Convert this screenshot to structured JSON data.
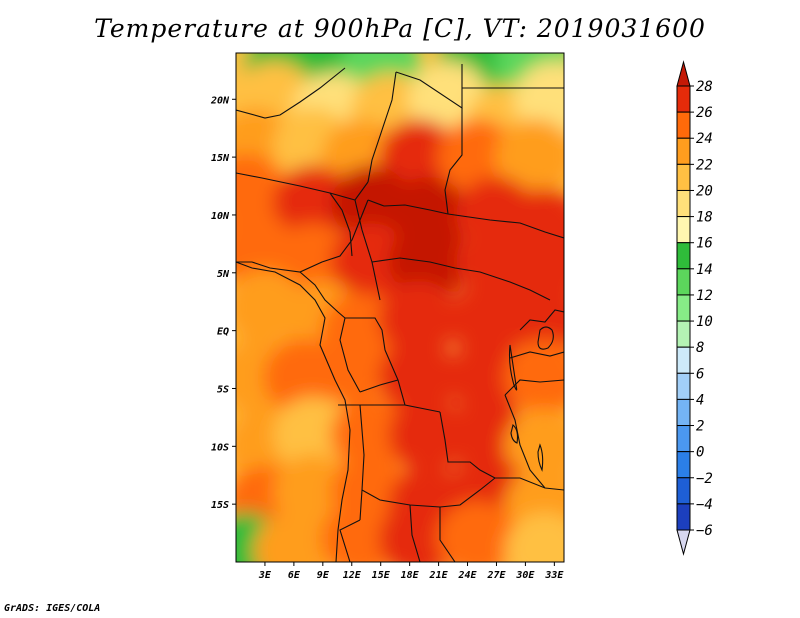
{
  "title": "Temperature at 900hPa [C], VT: 2019031600",
  "credit": "GrADS: IGES/COLA",
  "map": {
    "lon_range": [
      0,
      34
    ],
    "lat_range": [
      -20,
      24
    ],
    "lat_ticks": [
      {
        "lat": 20,
        "label": "20N"
      },
      {
        "lat": 15,
        "label": "15N"
      },
      {
        "lat": 10,
        "label": "10N"
      },
      {
        "lat": 5,
        "label": "5N"
      },
      {
        "lat": 0,
        "label": "EQ"
      },
      {
        "lat": -5,
        "label": "5S"
      },
      {
        "lat": -10,
        "label": "10S"
      },
      {
        "lat": -15,
        "label": "15S"
      }
    ],
    "lon_ticks": [
      {
        "lon": 3,
        "label": "3E"
      },
      {
        "lon": 6,
        "label": "6E"
      },
      {
        "lon": 9,
        "label": "9E"
      },
      {
        "lon": 12,
        "label": "12E"
      },
      {
        "lon": 15,
        "label": "15E"
      },
      {
        "lon": 18,
        "label": "18E"
      },
      {
        "lon": 21,
        "label": "21E"
      },
      {
        "lon": 24,
        "label": "24E"
      },
      {
        "lon": 27,
        "label": "27E"
      },
      {
        "lon": 30,
        "label": "30E"
      },
      {
        "lon": 33,
        "label": "33E"
      }
    ]
  },
  "colorbar": {
    "levels": [
      -6,
      -4,
      -2,
      0,
      2,
      4,
      6,
      8,
      10,
      12,
      14,
      16,
      18,
      20,
      22,
      24,
      26,
      28
    ],
    "labels": [
      "28",
      "26",
      "24",
      "22",
      "20",
      "18",
      "16",
      "14",
      "12",
      "10",
      "8",
      "6",
      "4",
      "2",
      "0",
      "−2",
      "−4",
      "−6"
    ],
    "colors": [
      "#1a0a7a",
      "#1c3fbe",
      "#1e5fd6",
      "#2b7fe8",
      "#4b98f0",
      "#74b4f5",
      "#a2cff8",
      "#cdeafa",
      "#b4f3b4",
      "#87ec87",
      "#5cd65c",
      "#2fbc3a",
      "#fff7b0",
      "#ffe07a",
      "#ffc043",
      "#ff9d1e",
      "#ff6a0a",
      "#e52b0a",
      "#c41906"
    ]
  },
  "chart_data": {
    "type": "heatmap",
    "title": "Temperature at 900hPa [C], VT: 2019031600",
    "x_ticks": [
      "3E",
      "6E",
      "9E",
      "12E",
      "15E",
      "18E",
      "21E",
      "24E",
      "27E",
      "30E",
      "33E"
    ],
    "y_ticks": [
      "20N",
      "15N",
      "10N",
      "5N",
      "EQ",
      "5S",
      "10S",
      "15S"
    ],
    "xlim": [
      0,
      34
    ],
    "ylim": [
      -20,
      24
    ],
    "contour_levels": [
      -6,
      -4,
      -2,
      0,
      2,
      4,
      6,
      8,
      10,
      12,
      14,
      16,
      18,
      20,
      22,
      24,
      26,
      28
    ],
    "field": [
      {
        "lon": 0,
        "lat": 22,
        "t": 21
      },
      {
        "lon": 5,
        "lat": 23,
        "t": 14
      },
      {
        "lon": 10,
        "lat": 23,
        "t": 15
      },
      {
        "lon": 15,
        "lat": 23,
        "t": 13
      },
      {
        "lon": 25,
        "lat": 23,
        "t": 14
      },
      {
        "lon": 31,
        "lat": 23,
        "t": 13
      },
      {
        "lon": 4,
        "lat": 20,
        "t": 20
      },
      {
        "lon": 10,
        "lat": 19,
        "t": 19
      },
      {
        "lon": 16,
        "lat": 19,
        "t": 21
      },
      {
        "lon": 22,
        "lat": 20,
        "t": 19
      },
      {
        "lon": 28,
        "lat": 18,
        "t": 20
      },
      {
        "lon": 33,
        "lat": 20,
        "t": 19
      },
      {
        "lon": 2,
        "lat": 16,
        "t": 22
      },
      {
        "lon": 8,
        "lat": 16,
        "t": 21
      },
      {
        "lon": 13,
        "lat": 15,
        "t": 22
      },
      {
        "lon": 19,
        "lat": 15,
        "t": 26
      },
      {
        "lon": 25,
        "lat": 15,
        "t": 24
      },
      {
        "lon": 31,
        "lat": 15,
        "t": 22
      },
      {
        "lon": 1,
        "lat": 12,
        "t": 25
      },
      {
        "lon": 8,
        "lat": 11,
        "t": 27
      },
      {
        "lon": 14,
        "lat": 11,
        "t": 28
      },
      {
        "lon": 20,
        "lat": 10,
        "t": 28
      },
      {
        "lon": 27,
        "lat": 10,
        "t": 26
      },
      {
        "lon": 32,
        "lat": 9,
        "t": 27
      },
      {
        "lon": 2,
        "lat": 7,
        "t": 25
      },
      {
        "lon": 8,
        "lat": 6,
        "t": 24
      },
      {
        "lon": 14,
        "lat": 6,
        "t": 27
      },
      {
        "lon": 20,
        "lat": 6,
        "t": 28
      },
      {
        "lon": 27,
        "lat": 6,
        "t": 27
      },
      {
        "lon": 33,
        "lat": 6,
        "t": 27
      },
      {
        "lon": 3,
        "lat": 2,
        "t": 23
      },
      {
        "lon": 9,
        "lat": 1,
        "t": 22
      },
      {
        "lon": 13,
        "lat": 0,
        "t": 24
      },
      {
        "lon": 19,
        "lat": 1,
        "t": 26
      },
      {
        "lon": 26,
        "lat": 1,
        "t": 27
      },
      {
        "lon": 32,
        "lat": 1,
        "t": 26
      },
      {
        "lon": 2,
        "lat": -4,
        "t": 23
      },
      {
        "lon": 7,
        "lat": -4,
        "t": 24
      },
      {
        "lon": 12,
        "lat": -3,
        "t": 25
      },
      {
        "lon": 19,
        "lat": -4,
        "t": 26
      },
      {
        "lon": 26,
        "lat": -4,
        "t": 27
      },
      {
        "lon": 32,
        "lat": -4,
        "t": 25
      },
      {
        "lon": 3,
        "lat": -10,
        "t": 22
      },
      {
        "lon": 8,
        "lat": -9,
        "t": 21
      },
      {
        "lon": 14,
        "lat": -9,
        "t": 24
      },
      {
        "lon": 20,
        "lat": -9,
        "t": 26
      },
      {
        "lon": 26,
        "lat": -9,
        "t": 26
      },
      {
        "lon": 32,
        "lat": -10,
        "t": 23
      },
      {
        "lon": 3,
        "lat": -15,
        "t": 24
      },
      {
        "lon": 8,
        "lat": -14,
        "t": 22
      },
      {
        "lon": 14,
        "lat": -14,
        "t": 25
      },
      {
        "lon": 20,
        "lat": -15,
        "t": 27
      },
      {
        "lon": 26,
        "lat": -14,
        "t": 26
      },
      {
        "lon": 32,
        "lat": -15,
        "t": 23
      },
      {
        "lon": 1,
        "lat": -19,
        "t": 14
      },
      {
        "lon": 6,
        "lat": -19,
        "t": 22
      },
      {
        "lon": 13,
        "lat": -18,
        "t": 25
      },
      {
        "lon": 19,
        "lat": -18,
        "t": 27
      },
      {
        "lon": 25,
        "lat": -18,
        "t": 25
      },
      {
        "lon": 32,
        "lat": -19,
        "t": 21
      }
    ]
  }
}
